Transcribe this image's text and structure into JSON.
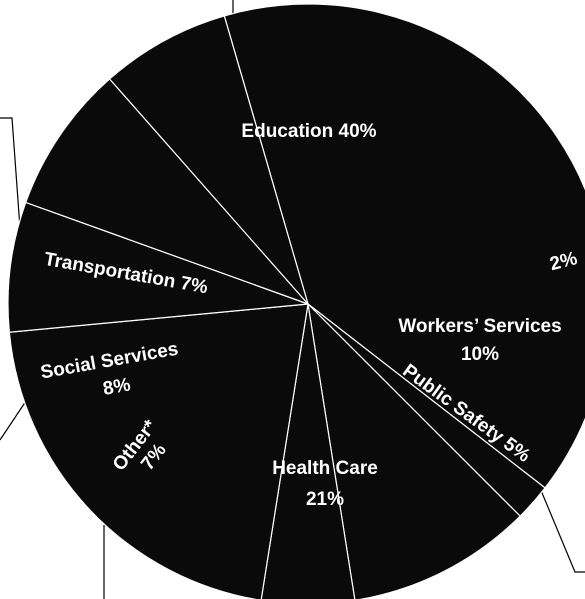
{
  "chart_data": {
    "type": "pie",
    "slices": [
      {
        "label": "Education",
        "value_label": "40%",
        "value": 40
      },
      {
        "label": "",
        "value_label": "2%",
        "value": 2
      },
      {
        "label": "Workers’ Services",
        "value_label": "10%",
        "value": 10
      },
      {
        "label": "Public Safety",
        "value_label": "5%",
        "value": 5
      },
      {
        "label": "Health Care",
        "value_label": "21%",
        "value": 21
      },
      {
        "label": "Other*",
        "value_label": "7%",
        "value": 7
      },
      {
        "label": "Social Services",
        "value_label": "8%",
        "value": 8
      },
      {
        "label": "Transportation",
        "value_label": "7%",
        "value": 7
      }
    ],
    "colors": {
      "slice_fill": "#0a0a0a",
      "divider": "#ffffff",
      "text": "#ffffff"
    }
  }
}
